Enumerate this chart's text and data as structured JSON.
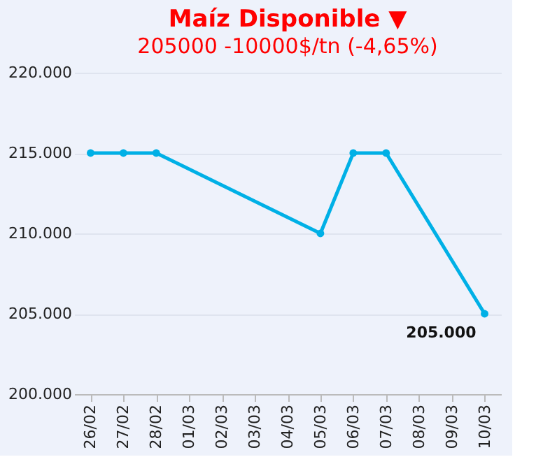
{
  "chart_data": {
    "type": "line",
    "title": "Maíz Disponible ▼",
    "subtitle": "205000 -10000$/tn (-4,65%)",
    "categories": [
      "26/02",
      "27/02",
      "28/02",
      "01/03",
      "02/03",
      "03/03",
      "04/03",
      "05/03",
      "06/03",
      "07/03",
      "08/03",
      "09/03",
      "10/03"
    ],
    "series": [
      {
        "color": "#00b0e6",
        "values": [
          215000,
          215000,
          215000,
          null,
          null,
          null,
          null,
          210000,
          215000,
          215000,
          null,
          null,
          205000
        ]
      }
    ],
    "ylim": [
      200000,
      220000
    ],
    "yticks": [
      {
        "value": 200000,
        "label": "200.000"
      },
      {
        "value": 205000,
        "label": "205.000"
      },
      {
        "value": 210000,
        "label": "210.000"
      },
      {
        "value": 215000,
        "label": "215.000"
      },
      {
        "value": 220000,
        "label": "220.000"
      }
    ],
    "annotations": [
      {
        "text": "205.000",
        "x": "10/03",
        "y": 205000
      }
    ],
    "grid": "y",
    "marker": "circle",
    "line_style": "solid"
  }
}
